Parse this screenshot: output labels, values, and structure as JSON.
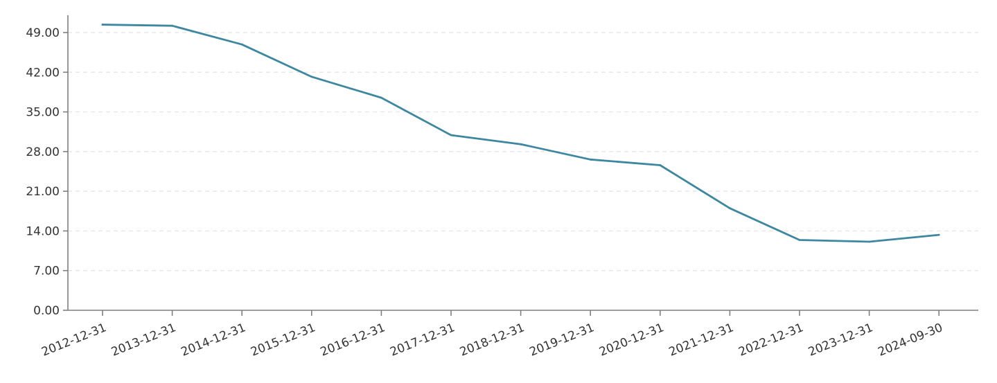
{
  "chart_data": {
    "type": "line",
    "title": "",
    "xlabel": "",
    "ylabel": "",
    "categories": [
      "2012-12-31",
      "2013-12-31",
      "2014-12-31",
      "2015-12-31",
      "2016-12-31",
      "2017-12-31",
      "2018-12-31",
      "2019-12-31",
      "2020-12-31",
      "2021-12-31",
      "2022-12-31",
      "2023-12-31",
      "2024-09-30"
    ],
    "series": [
      {
        "values": [
          50.4,
          50.2,
          46.9,
          41.2,
          37.5,
          30.9,
          29.3,
          26.6,
          25.6,
          18.0,
          12.4,
          12.1,
          13.3
        ],
        "color": "#3d87a0"
      }
    ],
    "ylim": [
      0,
      49
    ],
    "yticks": [
      0,
      7,
      14,
      21,
      28,
      35,
      42,
      49
    ],
    "ytick_labels": [
      "0.00",
      "7.00",
      "14.00",
      "21.00",
      "28.00",
      "35.00",
      "42.00",
      "49.00"
    ],
    "grid": true,
    "grid_style": "dashed",
    "legend": "none"
  }
}
